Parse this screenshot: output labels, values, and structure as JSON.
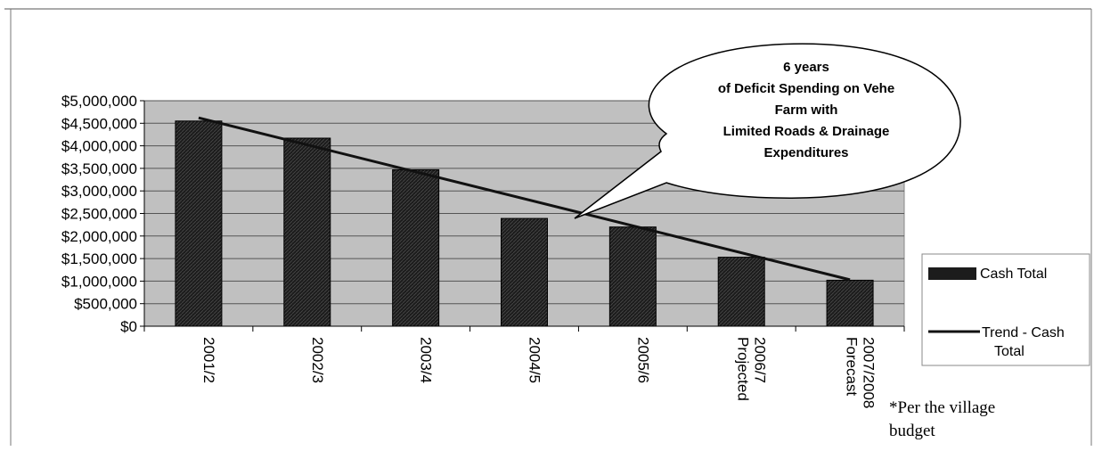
{
  "chart_data": {
    "type": "bar",
    "categories": [
      [
        "2001/2"
      ],
      [
        "2002/3"
      ],
      [
        "2003/4"
      ],
      [
        "2004/5"
      ],
      [
        "2005/6"
      ],
      [
        "Projected",
        "2006/7"
      ],
      [
        "Forecast",
        "2007/2008"
      ]
    ],
    "series": [
      {
        "name": "Cash Total",
        "values": [
          4550000,
          4170000,
          3470000,
          2390000,
          2200000,
          1530000,
          1020000
        ]
      }
    ],
    "trend": {
      "name": "Trend - Cash Total",
      "start": 4620000,
      "end": 1030000
    },
    "ylim": [
      0,
      5000000
    ],
    "yticks": [
      "$0",
      "$500,000",
      "$1,000,000",
      "$1,500,000",
      "$2,000,000",
      "$2,500,000",
      "$3,000,000",
      "$3,500,000",
      "$4,000,000",
      "$4,500,000",
      "$5,000,000"
    ],
    "grid": true,
    "legend_position": "right",
    "callout": [
      "6 years",
      "of Deficit Spending on Vehe",
      "Farm with",
      "Limited Roads & Drainage",
      "Expenditures"
    ],
    "colors": {
      "plot_bg": "#c0c0c0",
      "bar": "#1c1c1c",
      "trend": "#111111"
    }
  },
  "note": {
    "line1": "*Per the village",
    "line2": "budget"
  }
}
